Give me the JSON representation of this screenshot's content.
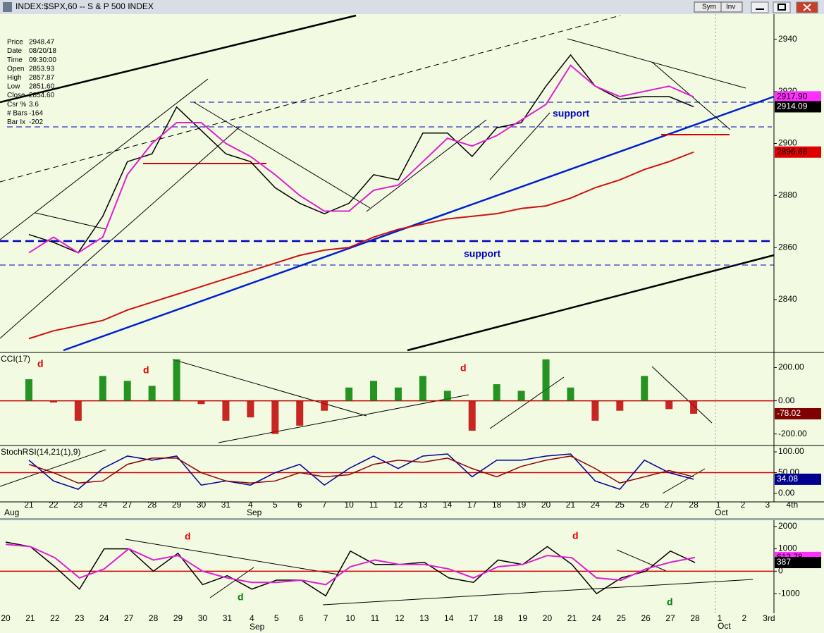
{
  "chart_data": [
    {
      "type": "line",
      "title": "INDEX:$SPX,60 -- S & P 500 INDEX",
      "categories": [
        "21",
        "22",
        "23",
        "24",
        "27",
        "28",
        "29",
        "30",
        "31",
        "4",
        "5",
        "6",
        "7",
        "10",
        "11",
        "12",
        "13",
        "14",
        "17",
        "18",
        "19",
        "20",
        "21",
        "24",
        "25",
        "26",
        "27",
        "28",
        "1",
        "2",
        "3",
        "4th"
      ],
      "ylim": [
        2820.5,
        2949.7
      ],
      "yticks": [
        2840,
        2860,
        2880,
        2900,
        2920,
        2940
      ],
      "series": [
        {
          "name": "Close",
          "color": "#000000",
          "width": 1.5,
          "values": [
            2865,
            2862,
            2858,
            2872,
            2893,
            2896,
            2914,
            2905,
            2896,
            2893,
            2883,
            2877,
            2873,
            2877,
            2888,
            2886,
            2904,
            2904,
            2895,
            2906,
            2908,
            2922,
            2934,
            2922,
            2917,
            2918,
            2918,
            2914.09,
            null,
            null,
            null,
            null
          ]
        },
        {
          "name": "Short MA",
          "color": "#e020d0",
          "width": 2,
          "values": [
            2858,
            2864,
            2858,
            2864,
            2888,
            2900,
            2908,
            2908,
            2900,
            2895,
            2888,
            2880,
            2874,
            2874,
            2882,
            2884,
            2893,
            2902,
            2899,
            2903,
            2909,
            2915,
            2930,
            2922,
            2918,
            2920,
            2922,
            2917.9,
            null,
            null,
            null,
            null
          ]
        },
        {
          "name": "Long MA",
          "color": "#d01010",
          "width": 2,
          "values": [
            2825,
            2828,
            2830,
            2832,
            2836,
            2839,
            2842,
            2845,
            2848,
            2851,
            2854,
            2857,
            2859,
            2860,
            2864,
            2867,
            2869,
            2871,
            2872,
            2873,
            2875,
            2876,
            2879,
            2883,
            2886,
            2890,
            2893,
            2896.68,
            null,
            null,
            null,
            null
          ]
        }
      ],
      "last_labels": [
        {
          "value": 2917.9,
          "label": "2917.90"
        },
        2914.09,
        2896.68
      ],
      "last_label_colors": [
        "#ff30ff",
        "#000000",
        "#e00000"
      ],
      "last_label_text_colors": [
        "#000000",
        "#ffffff",
        "#000000"
      ]
    },
    {
      "type": "bar",
      "title": "CCI(17)",
      "ylim": [
        -261,
        283
      ],
      "yticks": [
        {
          "value": -200,
          "label": "-200.00"
        },
        {
          "value": 0,
          "label": "0.00"
        },
        {
          "value": 200,
          "label": "200.00"
        }
      ],
      "ref_line": 0,
      "ref_color": "#c00000",
      "positive_color": "#008000",
      "negative_color": "#c00000",
      "values": [
        130,
        -10,
        -120,
        150,
        120,
        90,
        250,
        -20,
        -120,
        -100,
        -200,
        -150,
        -60,
        80,
        120,
        80,
        150,
        60,
        -180,
        100,
        60,
        250,
        80,
        -120,
        -60,
        150,
        -50,
        -78.02,
        null,
        null,
        null,
        null
      ],
      "last_labels": [
        -78.02
      ],
      "last_label_colors": [
        "#800000"
      ],
      "last_label_text_colors": [
        "#ffffff"
      ]
    },
    {
      "type": "line",
      "title": "StochRSI(14,21(1),9)",
      "ylim": [
        -17,
        112
      ],
      "yticks": [
        {
          "value": 0,
          "label": "0.00"
        },
        {
          "value": 50,
          "label": "50.00"
        },
        {
          "value": 100,
          "label": "100.00"
        }
      ],
      "ref_line": 50,
      "ref_color": "#d00000",
      "series": [
        {
          "name": "StochRSI",
          "color": "#000090",
          "width": 1.5,
          "values": [
            80,
            30,
            10,
            60,
            90,
            80,
            90,
            20,
            30,
            20,
            50,
            70,
            20,
            60,
            90,
            60,
            90,
            95,
            40,
            80,
            80,
            90,
            95,
            30,
            10,
            80,
            50,
            34.08,
            null,
            null,
            null,
            null
          ]
        },
        {
          "name": "Signal",
          "color": "#900000",
          "width": 1.5,
          "values": [
            70,
            50,
            25,
            30,
            70,
            85,
            85,
            50,
            30,
            25,
            30,
            50,
            40,
            45,
            70,
            80,
            75,
            85,
            60,
            40,
            65,
            80,
            90,
            60,
            25,
            40,
            55,
            40,
            null,
            null,
            null,
            null
          ]
        }
      ],
      "last_labels": [
        34.08
      ],
      "last_label_colors": [
        "#000090"
      ],
      "last_label_text_colors": [
        "#ffffff"
      ]
    },
    {
      "type": "line",
      "categories": [
        "20",
        "21",
        "22",
        "23",
        "24",
        "27",
        "28",
        "29",
        "30",
        "31",
        "4",
        "5",
        "6",
        "7",
        "10",
        "11",
        "12",
        "13",
        "14",
        "17",
        "18",
        "19",
        "20",
        "21",
        "24",
        "25",
        "26",
        "27",
        "28",
        "1",
        "2",
        "3rd"
      ],
      "ylim": [
        -1815,
        2277
      ],
      "yticks": [
        -1000,
        0,
        1000,
        2000
      ],
      "ref_line": 0,
      "ref_color": "#d00000",
      "series": [
        {
          "name": "Oscillator",
          "color": "#000000",
          "width": 1.5,
          "values": [
            1300,
            1100,
            200,
            -800,
            1000,
            1000,
            0,
            800,
            -600,
            -200,
            -800,
            -400,
            -400,
            -1100,
            900,
            300,
            300,
            400,
            -300,
            -500,
            500,
            300,
            1100,
            300,
            -1000,
            -300,
            0,
            900,
            387,
            null,
            null,
            null
          ]
        },
        {
          "name": "Average",
          "color": "#e020d0",
          "width": 2,
          "values": [
            1200,
            1100,
            600,
            -300,
            100,
            1000,
            500,
            700,
            0,
            -300,
            -500,
            -500,
            -400,
            -600,
            200,
            500,
            300,
            300,
            100,
            -300,
            200,
            300,
            700,
            600,
            -300,
            -400,
            100,
            400,
            612.78,
            null,
            null,
            null
          ]
        }
      ],
      "last_labels": [
        {
          "value": 612.78,
          "label": "612.78"
        },
        387
      ],
      "last_label_colors": [
        "#ff30ff",
        "#000000"
      ],
      "last_label_text_colors": [
        "#000000",
        "#ffffff"
      ]
    }
  ],
  "info": {
    "labels": [
      "Price",
      "Date",
      "Time",
      "Open",
      "High",
      "Low",
      "Close",
      "Csr %",
      "# Bars",
      "Bar Ix"
    ],
    "values": [
      "2948.47",
      "08/20/18",
      "09:30:00",
      "2853.93",
      "2857.87",
      "2851.60",
      "2854.60",
      "3.6",
      "-164",
      "-202"
    ]
  },
  "buttons": [
    "Sym",
    "Inv"
  ],
  "months_top": [
    "Aug",
    "Sep",
    "Oct"
  ],
  "months_bottom": [
    "Sep",
    "Oct"
  ],
  "annotations": [
    "d",
    "d",
    "d",
    "d",
    "d",
    "d",
    "d",
    "support",
    "support"
  ]
}
